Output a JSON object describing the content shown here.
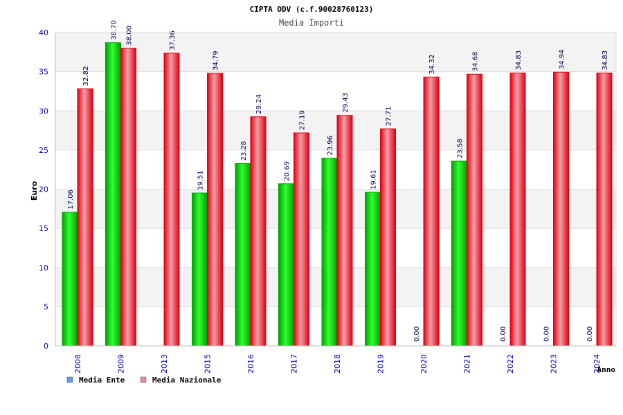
{
  "chart_data": {
    "type": "bar",
    "title": "CIPTA ODV (c.f.90028760123)",
    "subtitle": "Media Importi",
    "xlabel": "Anno",
    "ylabel": "Euro",
    "ylim": [
      0,
      40
    ],
    "yticks": [
      0,
      5,
      10,
      15,
      20,
      25,
      30,
      35,
      40
    ],
    "grid": true,
    "legend_placement": "bottom-left",
    "categories": [
      "2008",
      "2009",
      "2013",
      "2015",
      "2016",
      "2017",
      "2018",
      "2019",
      "2020",
      "2021",
      "2022",
      "2023",
      "2024"
    ],
    "series": [
      {
        "name": "Media Ente",
        "color": "#00b000",
        "legend_color": "#6699ee",
        "values": [
          17.06,
          38.7,
          null,
          19.51,
          23.28,
          20.69,
          23.96,
          19.61,
          0.0,
          23.58,
          0.0,
          0.0,
          0.0
        ],
        "labels": [
          "17.06",
          "38.70",
          "",
          "19.51",
          "23.28",
          "20.69",
          "23.96",
          "19.61",
          "0.00",
          "23.58",
          "0.00",
          "0.00",
          "0.00"
        ]
      },
      {
        "name": "Media Nazionale",
        "color": "#ee1122",
        "legend_color": "#dd88aa",
        "values": [
          32.82,
          38.0,
          37.36,
          34.79,
          29.24,
          27.19,
          29.43,
          27.71,
          34.32,
          34.68,
          34.83,
          34.94,
          34.83
        ],
        "labels": [
          "32.82",
          "38.00",
          "37.36",
          "34.79",
          "29.24",
          "27.19",
          "29.43",
          "27.71",
          "34.32",
          "34.68",
          "34.83",
          "34.94",
          "34.83"
        ]
      }
    ]
  }
}
